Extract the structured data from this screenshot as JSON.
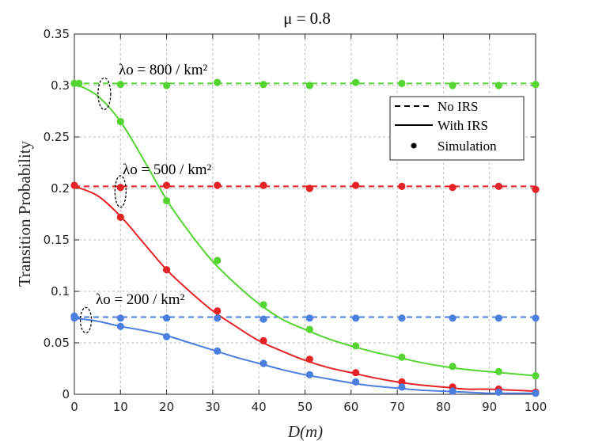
{
  "chart_data": {
    "type": "line",
    "title": "μ = 0.8",
    "xlabel": "D(m)",
    "ylabel": "Transition Probability",
    "xlim": [
      0,
      100
    ],
    "ylim": [
      0,
      0.35
    ],
    "grid": true,
    "x_ticks": [
      0,
      10,
      20,
      30,
      40,
      50,
      60,
      70,
      80,
      90,
      100
    ],
    "y_ticks": [
      0,
      0.05,
      0.1,
      0.15,
      0.2,
      0.25,
      0.3,
      0.35
    ],
    "x_tick_labels": [
      "0",
      "10",
      "20",
      "30",
      "40",
      "50",
      "60",
      "70",
      "80",
      "90",
      "100"
    ],
    "y_tick_labels": [
      "0",
      "0.05",
      "0.1",
      "0.15",
      "0.2",
      "0.25",
      "0.3",
      "0.35"
    ],
    "legend": {
      "position": "right",
      "entries": [
        "No IRS",
        "With IRS",
        "Simulation"
      ]
    },
    "colors": {
      "green": "#55d532",
      "red": "#e52225",
      "blue": "#4a7fe0"
    },
    "annotations": [
      {
        "text": "λo = 800 / km²",
        "series": "green",
        "x": 5,
        "y": 0.302
      },
      {
        "text": "λo = 500 / km²",
        "series": "red",
        "x": 10,
        "y": 0.203
      },
      {
        "text": "λo = 200 / km²",
        "series": "blue",
        "x": 3,
        "y": 0.074
      }
    ],
    "series": [
      {
        "name": "No IRS (λo = 800 / km²)",
        "style": "dashed",
        "color": "#55d532",
        "x": [
          0,
          100
        ],
        "y": [
          0.302,
          0.302
        ]
      },
      {
        "name": "No IRS (λo = 500 / km²)",
        "style": "dashed",
        "color": "#e52225",
        "x": [
          0,
          100
        ],
        "y": [
          0.202,
          0.202
        ]
      },
      {
        "name": "No IRS (λo = 200 / km²)",
        "style": "dashed",
        "color": "#4a7fe0",
        "x": [
          0,
          100
        ],
        "y": [
          0.075,
          0.075
        ]
      },
      {
        "name": "With IRS (λo = 800 / km²)",
        "style": "solid",
        "color": "#55d532",
        "x": [
          0,
          5,
          10,
          15,
          20,
          25,
          30,
          35,
          40,
          45,
          50,
          55,
          60,
          65,
          70,
          75,
          80,
          85,
          90,
          95,
          100
        ],
        "y": [
          0.302,
          0.29,
          0.265,
          0.228,
          0.189,
          0.157,
          0.129,
          0.107,
          0.088,
          0.073,
          0.063,
          0.054,
          0.047,
          0.041,
          0.036,
          0.031,
          0.027,
          0.024,
          0.022,
          0.02,
          0.018
        ]
      },
      {
        "name": "With IRS (λo = 500 / km²)",
        "style": "solid",
        "color": "#e52225",
        "x": [
          0,
          5,
          10,
          15,
          20,
          25,
          30,
          35,
          40,
          45,
          50,
          55,
          60,
          65,
          70,
          75,
          80,
          85,
          90,
          95,
          100
        ],
        "y": [
          0.202,
          0.193,
          0.173,
          0.147,
          0.121,
          0.1,
          0.081,
          0.066,
          0.052,
          0.042,
          0.033,
          0.026,
          0.021,
          0.016,
          0.012,
          0.009,
          0.007,
          0.005,
          0.005,
          0.004,
          0.003
        ]
      },
      {
        "name": "With IRS (λo = 200 / km²)",
        "style": "solid",
        "color": "#4a7fe0",
        "x": [
          0,
          5,
          10,
          15,
          20,
          25,
          30,
          35,
          40,
          45,
          50,
          55,
          60,
          65,
          70,
          75,
          80,
          85,
          90,
          95,
          100
        ],
        "y": [
          0.074,
          0.071,
          0.066,
          0.062,
          0.057,
          0.05,
          0.043,
          0.036,
          0.03,
          0.024,
          0.019,
          0.015,
          0.011,
          0.008,
          0.006,
          0.004,
          0.003,
          0.002,
          0.001,
          0.001,
          0.001
        ]
      },
      {
        "name": "Simulation (λo = 800 / km²)",
        "style": "markers",
        "color": "#55d532",
        "x": [
          0,
          1,
          10,
          20,
          31,
          41,
          51,
          61,
          71,
          82,
          92,
          100
        ],
        "y": [
          0.302,
          0.302,
          0.301,
          0.3,
          0.303,
          0.301,
          0.3,
          0.303,
          0.302,
          0.3,
          0.3,
          0.301
        ]
      },
      {
        "name": "Simulation (λo = 800 / km², IRS)",
        "style": "markers",
        "color": "#55d532",
        "x": [
          10,
          20,
          31,
          41,
          51,
          61,
          71,
          82,
          92,
          100
        ],
        "y": [
          0.265,
          0.188,
          0.13,
          0.087,
          0.063,
          0.047,
          0.036,
          0.027,
          0.022,
          0.018
        ]
      },
      {
        "name": "Simulation (λo = 500 / km²)",
        "style": "markers",
        "color": "#e52225",
        "x": [
          0,
          10,
          20,
          31,
          41,
          51,
          61,
          71,
          82,
          92,
          100
        ],
        "y": [
          0.203,
          0.201,
          0.203,
          0.203,
          0.203,
          0.2,
          0.203,
          0.202,
          0.201,
          0.202,
          0.199
        ]
      },
      {
        "name": "Simulation (λo = 500 / km², IRS)",
        "style": "markers",
        "color": "#e52225",
        "x": [
          10,
          20,
          31,
          41,
          51,
          61,
          71,
          82,
          92,
          100
        ],
        "y": [
          0.172,
          0.121,
          0.081,
          0.052,
          0.034,
          0.021,
          0.012,
          0.007,
          0.005,
          0.002
        ]
      },
      {
        "name": "Simulation (λo = 200 / km²)",
        "style": "markers",
        "color": "#4a7fe0",
        "x": [
          0,
          10,
          20,
          31,
          41,
          51,
          61,
          71,
          82,
          92,
          100
        ],
        "y": [
          0.076,
          0.074,
          0.074,
          0.074,
          0.073,
          0.074,
          0.074,
          0.074,
          0.074,
          0.074,
          0.074
        ]
      },
      {
        "name": "Simulation (λo = 200 / km², IRS)",
        "style": "markers",
        "color": "#4a7fe0",
        "x": [
          0,
          10,
          20,
          31,
          41,
          51,
          61,
          71,
          82,
          92,
          100
        ],
        "y": [
          0.074,
          0.066,
          0.056,
          0.042,
          0.03,
          0.019,
          0.012,
          0.007,
          0.003,
          0.002,
          0.001
        ]
      }
    ]
  }
}
